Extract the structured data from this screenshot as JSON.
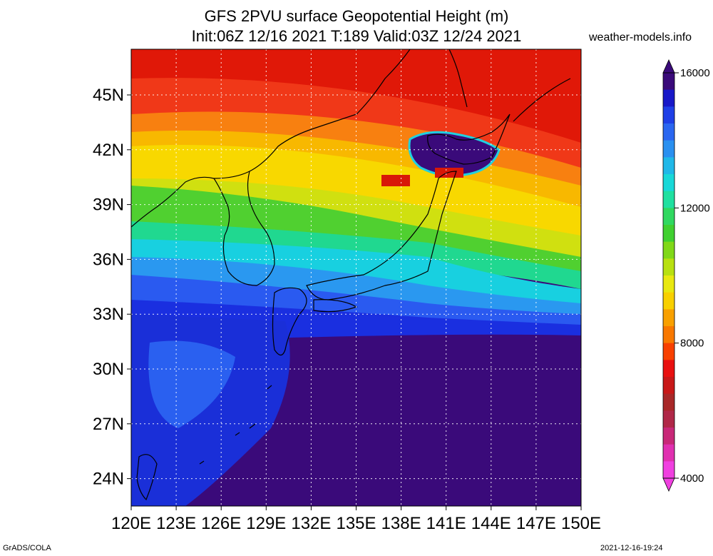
{
  "title": {
    "line1": "GFS 2PVU surface Geopotential Height (m)",
    "line2": "Init:06Z 12/16 2021 T:189 Valid:03Z 12/24 2021"
  },
  "site": "weather-models.info",
  "footer": {
    "left": "GrADS/COLA",
    "right": "2021-12-16-19:24"
  },
  "map": {
    "lat_labels": [
      "45N",
      "42N",
      "39N",
      "36N",
      "33N",
      "30N",
      "27N",
      "24N"
    ],
    "lon_labels": [
      "120E",
      "123E",
      "126E",
      "129E",
      "132E",
      "135E",
      "138E",
      "141E",
      "144E",
      "147E",
      "150E"
    ],
    "lat_range": [
      22.5,
      47.5
    ],
    "lon_range": [
      120,
      150
    ],
    "coastline_color": "#000000",
    "grid_color": "#ffffff"
  },
  "colorbar": {
    "labels": [
      "16000",
      "12000",
      "8000",
      "4000"
    ],
    "colors_top_to_bottom": [
      "#3a0a7a",
      "#1818c8",
      "#1f3fe6",
      "#2a66f0",
      "#2a90f0",
      "#20b8e8",
      "#18d8d8",
      "#20e0a0",
      "#30d860",
      "#40d030",
      "#80d818",
      "#b8e010",
      "#e8e810",
      "#f8d000",
      "#f8a000",
      "#f87800",
      "#f84000",
      "#e81010",
      "#c81818",
      "#a82828",
      "#b02848",
      "#c82878",
      "#e030b0",
      "#f040e0"
    ]
  }
}
